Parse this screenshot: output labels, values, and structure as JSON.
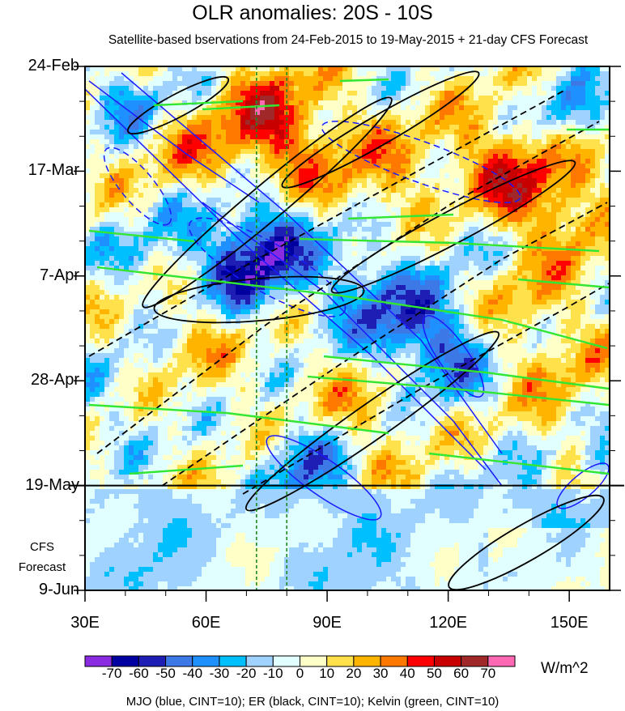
{
  "title": "OLR anomalies: 20S - 10S",
  "subtitle": "Satellite-based bservations from 24-Feb-2015 to 19-May-2015 + 21-day CFS Forecast",
  "footer": "MJO (blue, CINT=10); ER (black, CINT=10); Kelvin (green, CINT=10)",
  "units": "W/m^2",
  "forecast_note": [
    "CFS",
    "Forecast"
  ],
  "colors": {
    "mjo": "#1a1aff",
    "er": "#000000",
    "kelvin": "#33e633",
    "longitude_markers": "#1f8a1f"
  },
  "chart_data": {
    "type": "heatmap",
    "title": "OLR anomalies: 20S - 10S",
    "subtitle": "Satellite-based bservations from 24-Feb-2015 to 19-May-2015 + 21-day CFS Forecast",
    "xlabel": "",
    "ylabel": "",
    "xlim": [
      30,
      160
    ],
    "y_axis_reversed": true,
    "x_ticks": [
      {
        "value": 30,
        "label": "30E"
      },
      {
        "value": 60,
        "label": "60E"
      },
      {
        "value": 90,
        "label": "90E"
      },
      {
        "value": 120,
        "label": "120E"
      },
      {
        "value": 150,
        "label": "150E"
      }
    ],
    "y_ticks": [
      {
        "date": "2015-02-24",
        "label": "24-Feb"
      },
      {
        "date": "2015-03-17",
        "label": "17-Mar"
      },
      {
        "date": "2015-04-07",
        "label": "7-Apr"
      },
      {
        "date": "2015-04-28",
        "label": "28-Apr"
      },
      {
        "date": "2015-05-19",
        "label": "19-May"
      },
      {
        "date": "2015-06-09",
        "label": "9-Jun"
      }
    ],
    "ylim": [
      "2015-02-24",
      "2015-06-09"
    ],
    "observation_end": "2015-05-19",
    "forecast_end": "2015-06-09",
    "vertical_markers_lon": [
      72.5,
      80
    ],
    "colorbar": {
      "units": "W/m^2",
      "levels": [
        -70,
        -60,
        -50,
        -40,
        -30,
        -20,
        -10,
        0,
        10,
        20,
        30,
        40,
        50,
        60,
        70
      ],
      "level_labels": [
        "-70",
        "-60",
        "-50",
        "-40",
        "-30",
        "-20",
        "-10",
        "0",
        "10",
        "20",
        "30",
        "40",
        "50",
        "60",
        "70"
      ],
      "colors": [
        "#8a2be2",
        "#0000a0",
        "#1e1eb4",
        "#3c78e6",
        "#1e90ff",
        "#00bfff",
        "#a0d2ff",
        "#e1ffff",
        "#ffffc8",
        "#ffe14b",
        "#ffb400",
        "#ff7800",
        "#ff0000",
        "#c80000",
        "#a02828",
        "#ff69b4"
      ]
    },
    "contours": [
      {
        "field": "MJO",
        "color": "blue",
        "cint": 10
      },
      {
        "field": "ER",
        "color": "black",
        "cint": 10
      },
      {
        "field": "Kelvin",
        "color": "green",
        "cint": 10
      }
    ],
    "legend": "bottom"
  }
}
